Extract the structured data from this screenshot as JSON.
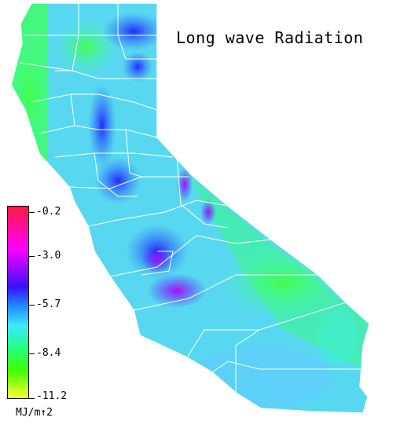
{
  "title": "Long wave Radiation",
  "legend": {
    "ticks": [
      "-0.2",
      "-3.0",
      "-5.7",
      "-8.4",
      "-11.2"
    ],
    "units": "MJ/m↑2"
  },
  "colors": {
    "high": "#ff1a40",
    "magenta": "#ff00ff",
    "blue": "#3a10ff",
    "cyan": "#3ce8ff",
    "green": "#20ff80",
    "low": "#ffff30",
    "county_lines": "#ffffff"
  }
}
